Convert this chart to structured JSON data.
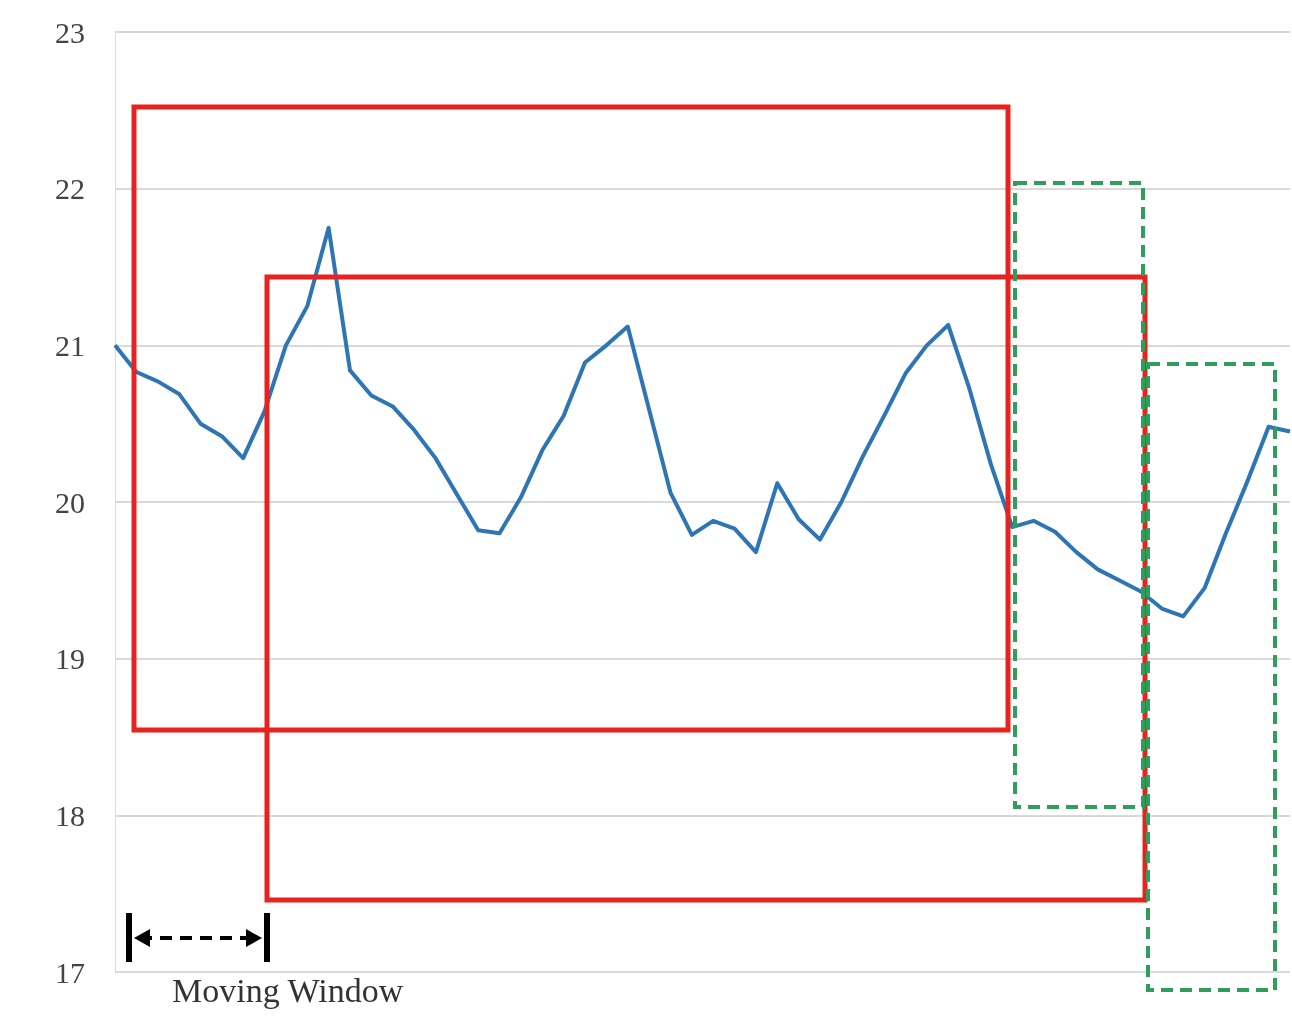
{
  "chart_data": {
    "type": "line",
    "categories": [
      null,
      null,
      null,
      null,
      null,
      null,
      null,
      null,
      null,
      null,
      null,
      null,
      null,
      null,
      null,
      null,
      null,
      null,
      null,
      null,
      null,
      null,
      null,
      null,
      null,
      null,
      null,
      null,
      null,
      null,
      null,
      null,
      null,
      null,
      null,
      null,
      null,
      null,
      null,
      null,
      null,
      null,
      null,
      null,
      null,
      null,
      null,
      null,
      null,
      null,
      null,
      null,
      null,
      null,
      null,
      null
    ],
    "series": [
      {
        "color": "#2e75b6",
        "values": [
          21.0,
          20.83,
          20.77,
          20.69,
          20.5,
          20.42,
          20.28,
          20.58,
          21.0,
          21.25,
          21.75,
          20.84,
          20.68,
          20.61,
          20.46,
          20.28,
          20.05,
          19.82,
          19.8,
          20.03,
          20.33,
          20.55,
          20.89,
          21.0,
          21.12,
          20.59,
          20.06,
          19.79,
          19.88,
          19.83,
          19.68,
          20.12,
          19.89,
          19.76,
          20.0,
          20.29,
          20.55,
          20.82,
          21.0,
          21.13,
          20.72,
          20.24,
          19.84,
          19.88,
          19.81,
          19.68,
          19.57,
          19.5,
          19.43,
          19.32,
          19.27,
          19.45,
          19.8,
          20.13,
          20.48,
          20.45
        ]
      }
    ],
    "ylim": [
      17,
      23
    ],
    "yticks": [
      17,
      18,
      19,
      20,
      21,
      22,
      23
    ],
    "grid": "y",
    "tick_labels": "y",
    "marker": "none",
    "line_style": "solid",
    "annotations": [
      "Moving Window"
    ]
  }
}
